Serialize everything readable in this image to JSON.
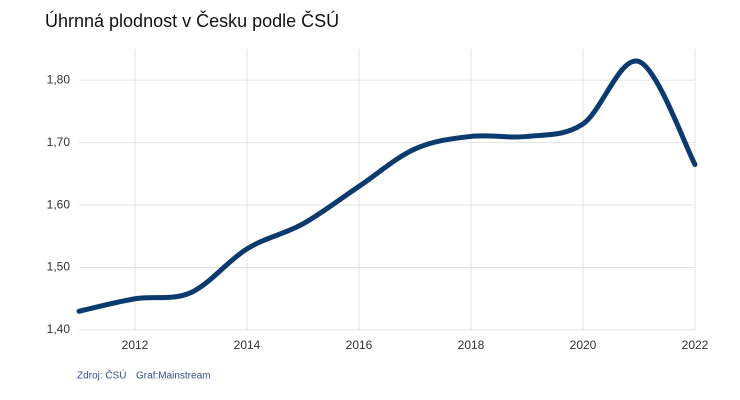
{
  "chart_data": {
    "type": "line",
    "title": "Úhrnná plodnost v Česku podle ČSÚ",
    "source": "Zdroj: ČSÚ",
    "credit": "Graf:Mainstream",
    "x": [
      2011,
      2012,
      2013,
      2014,
      2015,
      2016,
      2017,
      2018,
      2019,
      2020,
      2021,
      2022
    ],
    "values": [
      1.43,
      1.45,
      1.46,
      1.53,
      1.57,
      1.63,
      1.69,
      1.71,
      1.71,
      1.73,
      1.83,
      1.665
    ],
    "color": "#0b3a6e",
    "xlim": [
      2011,
      2022
    ],
    "xticks": [
      2012,
      2014,
      2016,
      2018,
      2020,
      2022
    ],
    "ylim": [
      1.4,
      1.85
    ],
    "yticks": [
      {
        "value": 1.4,
        "label": "1,40"
      },
      {
        "value": 1.5,
        "label": "1,50"
      },
      {
        "value": 1.6,
        "label": "1,60"
      },
      {
        "value": 1.7,
        "label": "1,70"
      },
      {
        "value": 1.8,
        "label": "1,80"
      }
    ],
    "grid": true
  }
}
